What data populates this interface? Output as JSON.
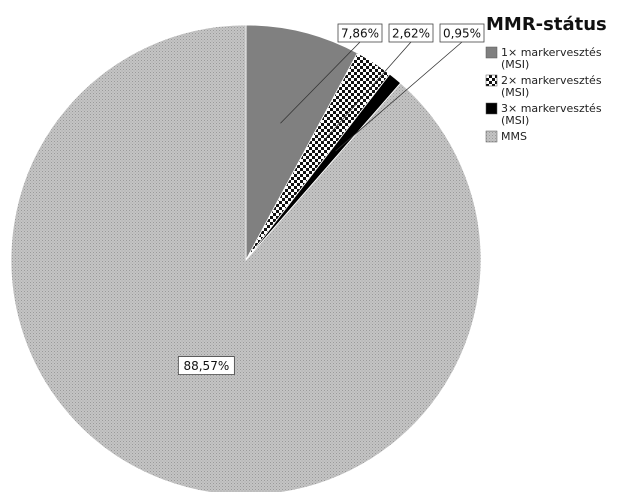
{
  "chart_data": {
    "type": "pie",
    "title": "",
    "legend_title": "MMR-státus",
    "legend_position": "top-right",
    "start_angle_deg": 0,
    "direction": "clockwise",
    "slices": [
      {
        "label_lines": [
          "1× markervesztés",
          "(MSI)"
        ],
        "value": 7.86,
        "display": "7,86%",
        "fill": "#808080",
        "pattern": "solid"
      },
      {
        "label_lines": [
          "2× markervesztés",
          "(MSI)"
        ],
        "value": 2.62,
        "display": "2,62%",
        "fill": "#ffffff",
        "pattern": "checker"
      },
      {
        "label_lines": [
          "3× markervesztés",
          "(MSI)"
        ],
        "value": 0.95,
        "display": "0,95%",
        "fill": "#000000",
        "pattern": "solid"
      },
      {
        "label_lines": [
          "MMS"
        ],
        "value": 88.57,
        "display": "88,57%",
        "fill": "#bdbdbd",
        "pattern": "fine-dots"
      }
    ]
  }
}
